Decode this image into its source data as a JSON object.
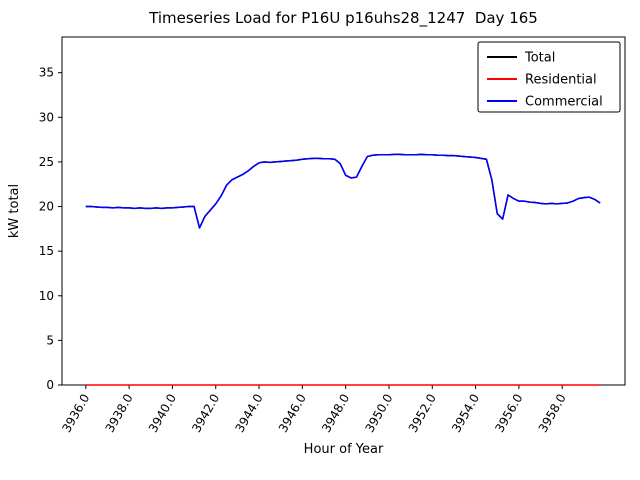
{
  "chart_data": {
    "type": "line",
    "title": "Timeseries Load for P16U p16uhs28_1247  Day 165",
    "xlabel": "Hour of Year",
    "ylabel": "kW total",
    "xlim": [
      3934.9,
      3960.9
    ],
    "ylim": [
      0,
      39
    ],
    "grid": false,
    "legend_position": "upper right",
    "xticks": [
      3936,
      3938,
      3940,
      3942,
      3944,
      3946,
      3948,
      3950,
      3952,
      3954,
      3956,
      3958
    ],
    "xtick_labels": [
      "3936.0",
      "3938.0",
      "3940.0",
      "3942.0",
      "3944.0",
      "3946.0",
      "3948.0",
      "3950.0",
      "3952.0",
      "3954.0",
      "3956.0",
      "3958.0"
    ],
    "yticks": [
      0,
      5,
      10,
      15,
      20,
      25,
      30,
      35
    ],
    "ytick_labels": [
      "0",
      "5",
      "10",
      "15",
      "20",
      "25",
      "30",
      "35"
    ],
    "x": [
      3936.0,
      3936.25,
      3936.5,
      3936.75,
      3937.0,
      3937.25,
      3937.5,
      3937.75,
      3938.0,
      3938.25,
      3938.5,
      3938.75,
      3939.0,
      3939.25,
      3939.5,
      3939.75,
      3940.0,
      3940.25,
      3940.5,
      3940.75,
      3941.0,
      3941.25,
      3941.5,
      3941.75,
      3942.0,
      3942.25,
      3942.5,
      3942.75,
      3943.0,
      3943.25,
      3943.5,
      3943.75,
      3944.0,
      3944.25,
      3944.5,
      3944.75,
      3945.0,
      3945.25,
      3945.5,
      3945.75,
      3946.0,
      3946.25,
      3946.5,
      3946.75,
      3947.0,
      3947.25,
      3947.5,
      3947.75,
      3948.0,
      3948.25,
      3948.5,
      3948.75,
      3949.0,
      3949.25,
      3949.5,
      3949.75,
      3950.0,
      3950.25,
      3950.5,
      3950.75,
      3951.0,
      3951.25,
      3951.5,
      3951.75,
      3952.0,
      3952.25,
      3952.5,
      3952.75,
      3953.0,
      3953.25,
      3953.5,
      3953.75,
      3954.0,
      3954.25,
      3954.5,
      3954.75,
      3955.0,
      3955.25,
      3955.5,
      3955.75,
      3956.0,
      3956.25,
      3956.5,
      3956.75,
      3957.0,
      3957.25,
      3957.5,
      3957.75,
      3958.0,
      3958.25,
      3958.5,
      3958.75,
      3959.0,
      3959.25,
      3959.5,
      3959.75
    ],
    "series": [
      {
        "name": "Total",
        "color": "#000000",
        "values": [
          20.0,
          20.0,
          19.95,
          19.9,
          19.9,
          19.85,
          19.9,
          19.85,
          19.85,
          19.8,
          19.85,
          19.8,
          19.8,
          19.85,
          19.8,
          19.85,
          19.85,
          19.9,
          19.95,
          20.0,
          20.0,
          17.6,
          18.9,
          19.6,
          20.3,
          21.2,
          22.4,
          23.0,
          23.3,
          23.6,
          24.0,
          24.5,
          24.9,
          25.0,
          24.95,
          25.0,
          25.05,
          25.1,
          25.15,
          25.2,
          25.3,
          25.35,
          25.4,
          25.4,
          25.35,
          25.35,
          25.3,
          24.8,
          23.5,
          23.2,
          23.3,
          24.5,
          25.6,
          25.75,
          25.8,
          25.8,
          25.8,
          25.85,
          25.85,
          25.8,
          25.8,
          25.8,
          25.85,
          25.8,
          25.8,
          25.75,
          25.75,
          25.7,
          25.7,
          25.65,
          25.6,
          25.55,
          25.5,
          25.4,
          25.3,
          23.0,
          19.2,
          18.6,
          21.3,
          20.9,
          20.6,
          20.6,
          20.5,
          20.45,
          20.35,
          20.3,
          20.35,
          20.3,
          20.35,
          20.4,
          20.6,
          20.9,
          21.0,
          21.05,
          20.8,
          20.4
        ]
      },
      {
        "name": "Residential",
        "color": "#ff0000",
        "values": [
          0.0,
          0.0,
          0.0,
          0.0,
          0.0,
          0.0,
          0.0,
          0.0,
          0.0,
          0.0,
          0.0,
          0.0,
          0.0,
          0.0,
          0.0,
          0.0,
          0.0,
          0.0,
          0.0,
          0.0,
          0.0,
          0.0,
          0.0,
          0.0,
          0.0,
          0.0,
          0.0,
          0.0,
          0.0,
          0.0,
          0.0,
          0.0,
          0.0,
          0.0,
          0.0,
          0.0,
          0.0,
          0.0,
          0.0,
          0.0,
          0.0,
          0.0,
          0.0,
          0.0,
          0.0,
          0.0,
          0.0,
          0.0,
          0.0,
          0.0,
          0.0,
          0.0,
          0.0,
          0.0,
          0.0,
          0.0,
          0.0,
          0.0,
          0.0,
          0.0,
          0.0,
          0.0,
          0.0,
          0.0,
          0.0,
          0.0,
          0.0,
          0.0,
          0.0,
          0.0,
          0.0,
          0.0,
          0.0,
          0.0,
          0.0,
          0.0,
          0.0,
          0.0,
          0.0,
          0.0,
          0.0,
          0.0,
          0.0,
          0.0,
          0.0,
          0.0,
          0.0,
          0.0,
          0.0,
          0.0,
          0.0,
          0.0,
          0.0,
          0.0,
          0.0,
          0.0
        ]
      },
      {
        "name": "Commercial",
        "color": "#0000ff",
        "values": [
          20.0,
          20.0,
          19.95,
          19.9,
          19.9,
          19.85,
          19.9,
          19.85,
          19.85,
          19.8,
          19.85,
          19.8,
          19.8,
          19.85,
          19.8,
          19.85,
          19.85,
          19.9,
          19.95,
          20.0,
          20.0,
          17.6,
          18.9,
          19.6,
          20.3,
          21.2,
          22.4,
          23.0,
          23.3,
          23.6,
          24.0,
          24.5,
          24.9,
          25.0,
          24.95,
          25.0,
          25.05,
          25.1,
          25.15,
          25.2,
          25.3,
          25.35,
          25.4,
          25.4,
          25.35,
          25.35,
          25.3,
          24.8,
          23.5,
          23.2,
          23.3,
          24.5,
          25.6,
          25.75,
          25.8,
          25.8,
          25.8,
          25.85,
          25.85,
          25.8,
          25.8,
          25.8,
          25.85,
          25.8,
          25.8,
          25.75,
          25.75,
          25.7,
          25.7,
          25.65,
          25.6,
          25.55,
          25.5,
          25.4,
          25.3,
          23.0,
          19.2,
          18.6,
          21.3,
          20.9,
          20.6,
          20.6,
          20.5,
          20.45,
          20.35,
          20.3,
          20.35,
          20.3,
          20.35,
          20.4,
          20.6,
          20.9,
          21.0,
          21.05,
          20.8,
          20.4
        ]
      }
    ],
    "legend_entries": [
      {
        "label": "Total",
        "color": "#000000"
      },
      {
        "label": "Residential",
        "color": "#ff0000"
      },
      {
        "label": "Commercial",
        "color": "#0000ff"
      }
    ]
  }
}
